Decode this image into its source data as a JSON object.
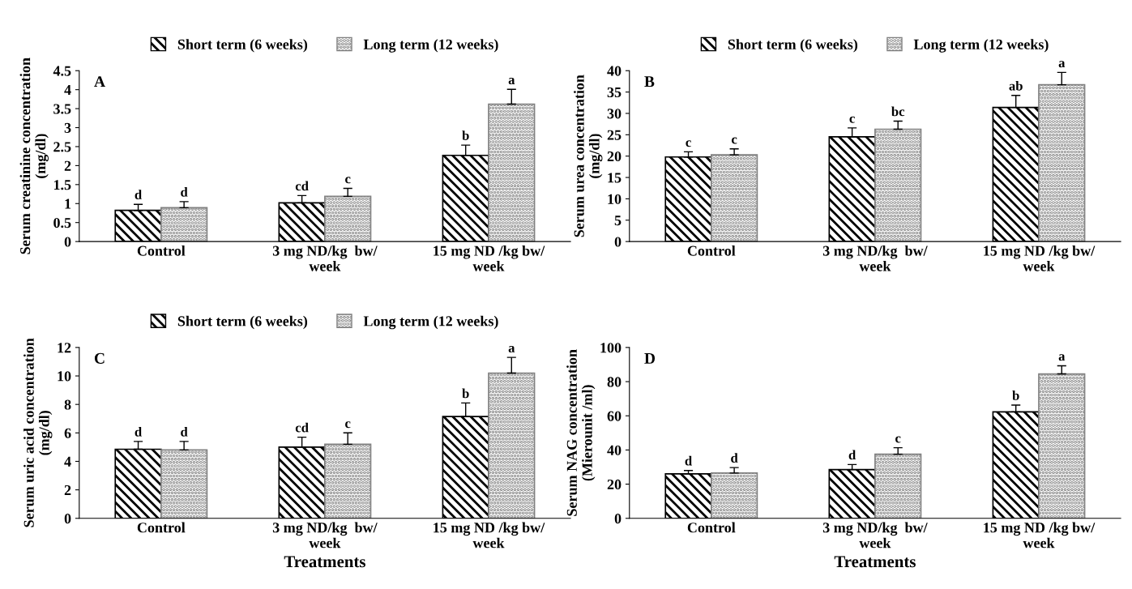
{
  "chart_data": [
    {
      "type": "bar",
      "annotations": [
        "A"
      ],
      "ylabel": "Serum creatinine concentration\n(mg/dl)",
      "categories": [
        "Control",
        "3 mg ND/kg  bw/\nweek",
        "15 mg ND /kg bw/\nweek"
      ],
      "ylim": [
        0,
        4.5
      ],
      "yticks": [
        0,
        0.5,
        1,
        1.5,
        2,
        2.5,
        3,
        3.5,
        4,
        4.5
      ],
      "grid": false,
      "legend": "top",
      "series": [
        {
          "name": "Short term (6 weeks)",
          "color": "#000000",
          "values": [
            0.82,
            1.02,
            2.27
          ],
          "errors": [
            [
              0.82,
              0.98
            ],
            [
              1.02,
              1.21
            ],
            [
              2.27,
              2.54
            ]
          ],
          "value_labels": [
            "d",
            "cd",
            "b"
          ]
        },
        {
          "name": "Long term (12 weeks)",
          "color": "#808080",
          "values": [
            0.89,
            1.19,
            3.62
          ],
          "errors": [
            [
              0.89,
              1.05
            ],
            [
              1.19,
              1.4
            ],
            [
              3.62,
              4.01
            ]
          ],
          "value_labels": [
            "d",
            "c",
            "a"
          ]
        }
      ]
    },
    {
      "type": "bar",
      "annotations": [
        "B"
      ],
      "ylabel": "Serum urea concentration\n(mg/dl)",
      "categories": [
        "Control",
        "3 mg ND/kg  bw/\nweek",
        "15 mg ND /kg bw/\nweek"
      ],
      "ylim": [
        0,
        40
      ],
      "yticks": [
        0,
        5,
        10,
        15,
        20,
        25,
        30,
        35,
        40
      ],
      "grid": false,
      "legend": "top",
      "series": [
        {
          "name": "Short term (6 weeks)",
          "color": "#000000",
          "values": [
            19.8,
            24.5,
            31.4
          ],
          "errors": [
            [
              19.8,
              21.0
            ],
            [
              24.5,
              26.6
            ],
            [
              31.4,
              34.2
            ]
          ],
          "value_labels": [
            "c",
            "c",
            "ab"
          ]
        },
        {
          "name": "Long term (12 weeks)",
          "color": "#808080",
          "values": [
            20.3,
            26.3,
            36.7
          ],
          "errors": [
            [
              20.3,
              21.7
            ],
            [
              26.3,
              28.2
            ],
            [
              36.7,
              39.6
            ]
          ],
          "value_labels": [
            "c",
            "bc",
            "a"
          ]
        }
      ]
    },
    {
      "type": "bar",
      "annotations": [
        "C"
      ],
      "xlabel": "Treatments",
      "ylabel": "Serum uric acid concentration\n(mg/dl)",
      "categories": [
        "Control",
        "3 mg ND/kg  bw/\nweek",
        "15 mg ND /kg bw/\nweek"
      ],
      "ylim": [
        0,
        12
      ],
      "yticks": [
        0,
        2,
        4,
        6,
        8,
        10,
        12
      ],
      "grid": false,
      "legend": "top",
      "series": [
        {
          "name": "Short term (6 weeks)",
          "color": "#000000",
          "values": [
            4.85,
            5.0,
            7.15
          ],
          "errors": [
            [
              4.85,
              5.4
            ],
            [
              5.0,
              5.7
            ],
            [
              7.15,
              8.1
            ]
          ],
          "value_labels": [
            "d",
            "cd",
            "b"
          ]
        },
        {
          "name": "Long term (12 weeks)",
          "color": "#808080",
          "values": [
            4.8,
            5.2,
            10.2
          ],
          "errors": [
            [
              4.8,
              5.4
            ],
            [
              5.2,
              6.0
            ],
            [
              10.2,
              11.3
            ]
          ],
          "value_labels": [
            "d",
            "c",
            "a"
          ]
        }
      ]
    },
    {
      "type": "bar",
      "annotations": [
        "D"
      ],
      "xlabel": "Treatments",
      "ylabel": "Serum NAG concentration\n(Mierounit /ml)",
      "categories": [
        "Control",
        "3 mg ND/kg  bw/\nweek",
        "15 mg ND /kg bw/\nweek"
      ],
      "ylim": [
        0,
        100
      ],
      "yticks": [
        0,
        20,
        40,
        60,
        80,
        100
      ],
      "grid": false,
      "series": [
        {
          "color": "#000000",
          "values": [
            26,
            28.5,
            62.3
          ],
          "errors": [
            [
              26,
              28
            ],
            [
              28.5,
              31.5
            ],
            [
              62.3,
              66.3
            ]
          ],
          "value_labels": [
            "d",
            "d",
            "b"
          ]
        },
        {
          "color": "#808080",
          "values": [
            26.5,
            37.5,
            84.5
          ],
          "errors": [
            [
              26.5,
              29.7
            ],
            [
              37.5,
              41.3
            ],
            [
              84.5,
              89.3
            ]
          ],
          "value_labels": [
            "d",
            "c",
            "a"
          ]
        }
      ]
    }
  ]
}
